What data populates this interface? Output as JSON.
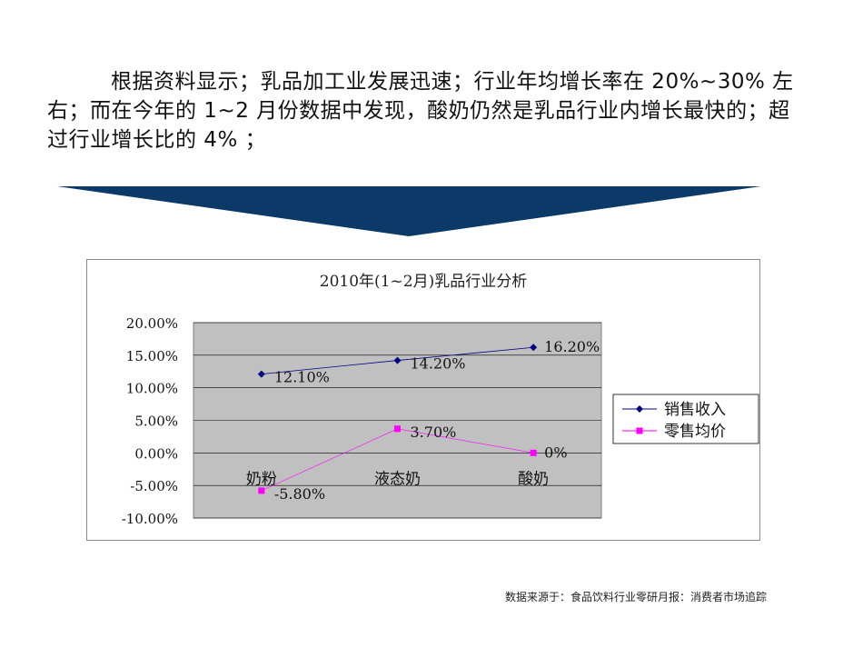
{
  "intro_text": "根据资料显示；乳品加工业发展迅速；行业年均增长率在 20%~30% 左右；而在今年的 1~2 月份数据中发现，酸奶仍然是乳品行业内增长最快的；超过行业增长比的 4% ；",
  "source_note": "数据来源于：食品饮料行业零研月报：消费者市场追踪",
  "colors": {
    "banner": "#0b3a68",
    "plot_bg": "#c0c0c0",
    "sales": "#000080",
    "price": "#ff00ff"
  },
  "chart_data": {
    "type": "line",
    "title": "2010年(1~2月)乳品行业分析",
    "categories": [
      "奶粉",
      "液态奶",
      "酸奶"
    ],
    "series": [
      {
        "name": "销售收入",
        "values": [
          12.1,
          14.2,
          16.2
        ],
        "labels": [
          "12.10%",
          "14.20%",
          "16.20%"
        ],
        "marker": "diamond"
      },
      {
        "name": "零售均价",
        "values": [
          -5.8,
          3.7,
          0
        ],
        "labels": [
          "-5.80%",
          "3.70%",
          "0%"
        ],
        "marker": "square"
      }
    ],
    "ylim": [
      -10,
      20
    ],
    "yticks": [
      20,
      15,
      10,
      5,
      0,
      -5,
      -10
    ],
    "ytick_labels": [
      "20.00%",
      "15.00%",
      "10.00%",
      "5.00%",
      "0.00%",
      "-5.00%",
      "-10.00%"
    ],
    "grid": true,
    "legend": "right"
  }
}
